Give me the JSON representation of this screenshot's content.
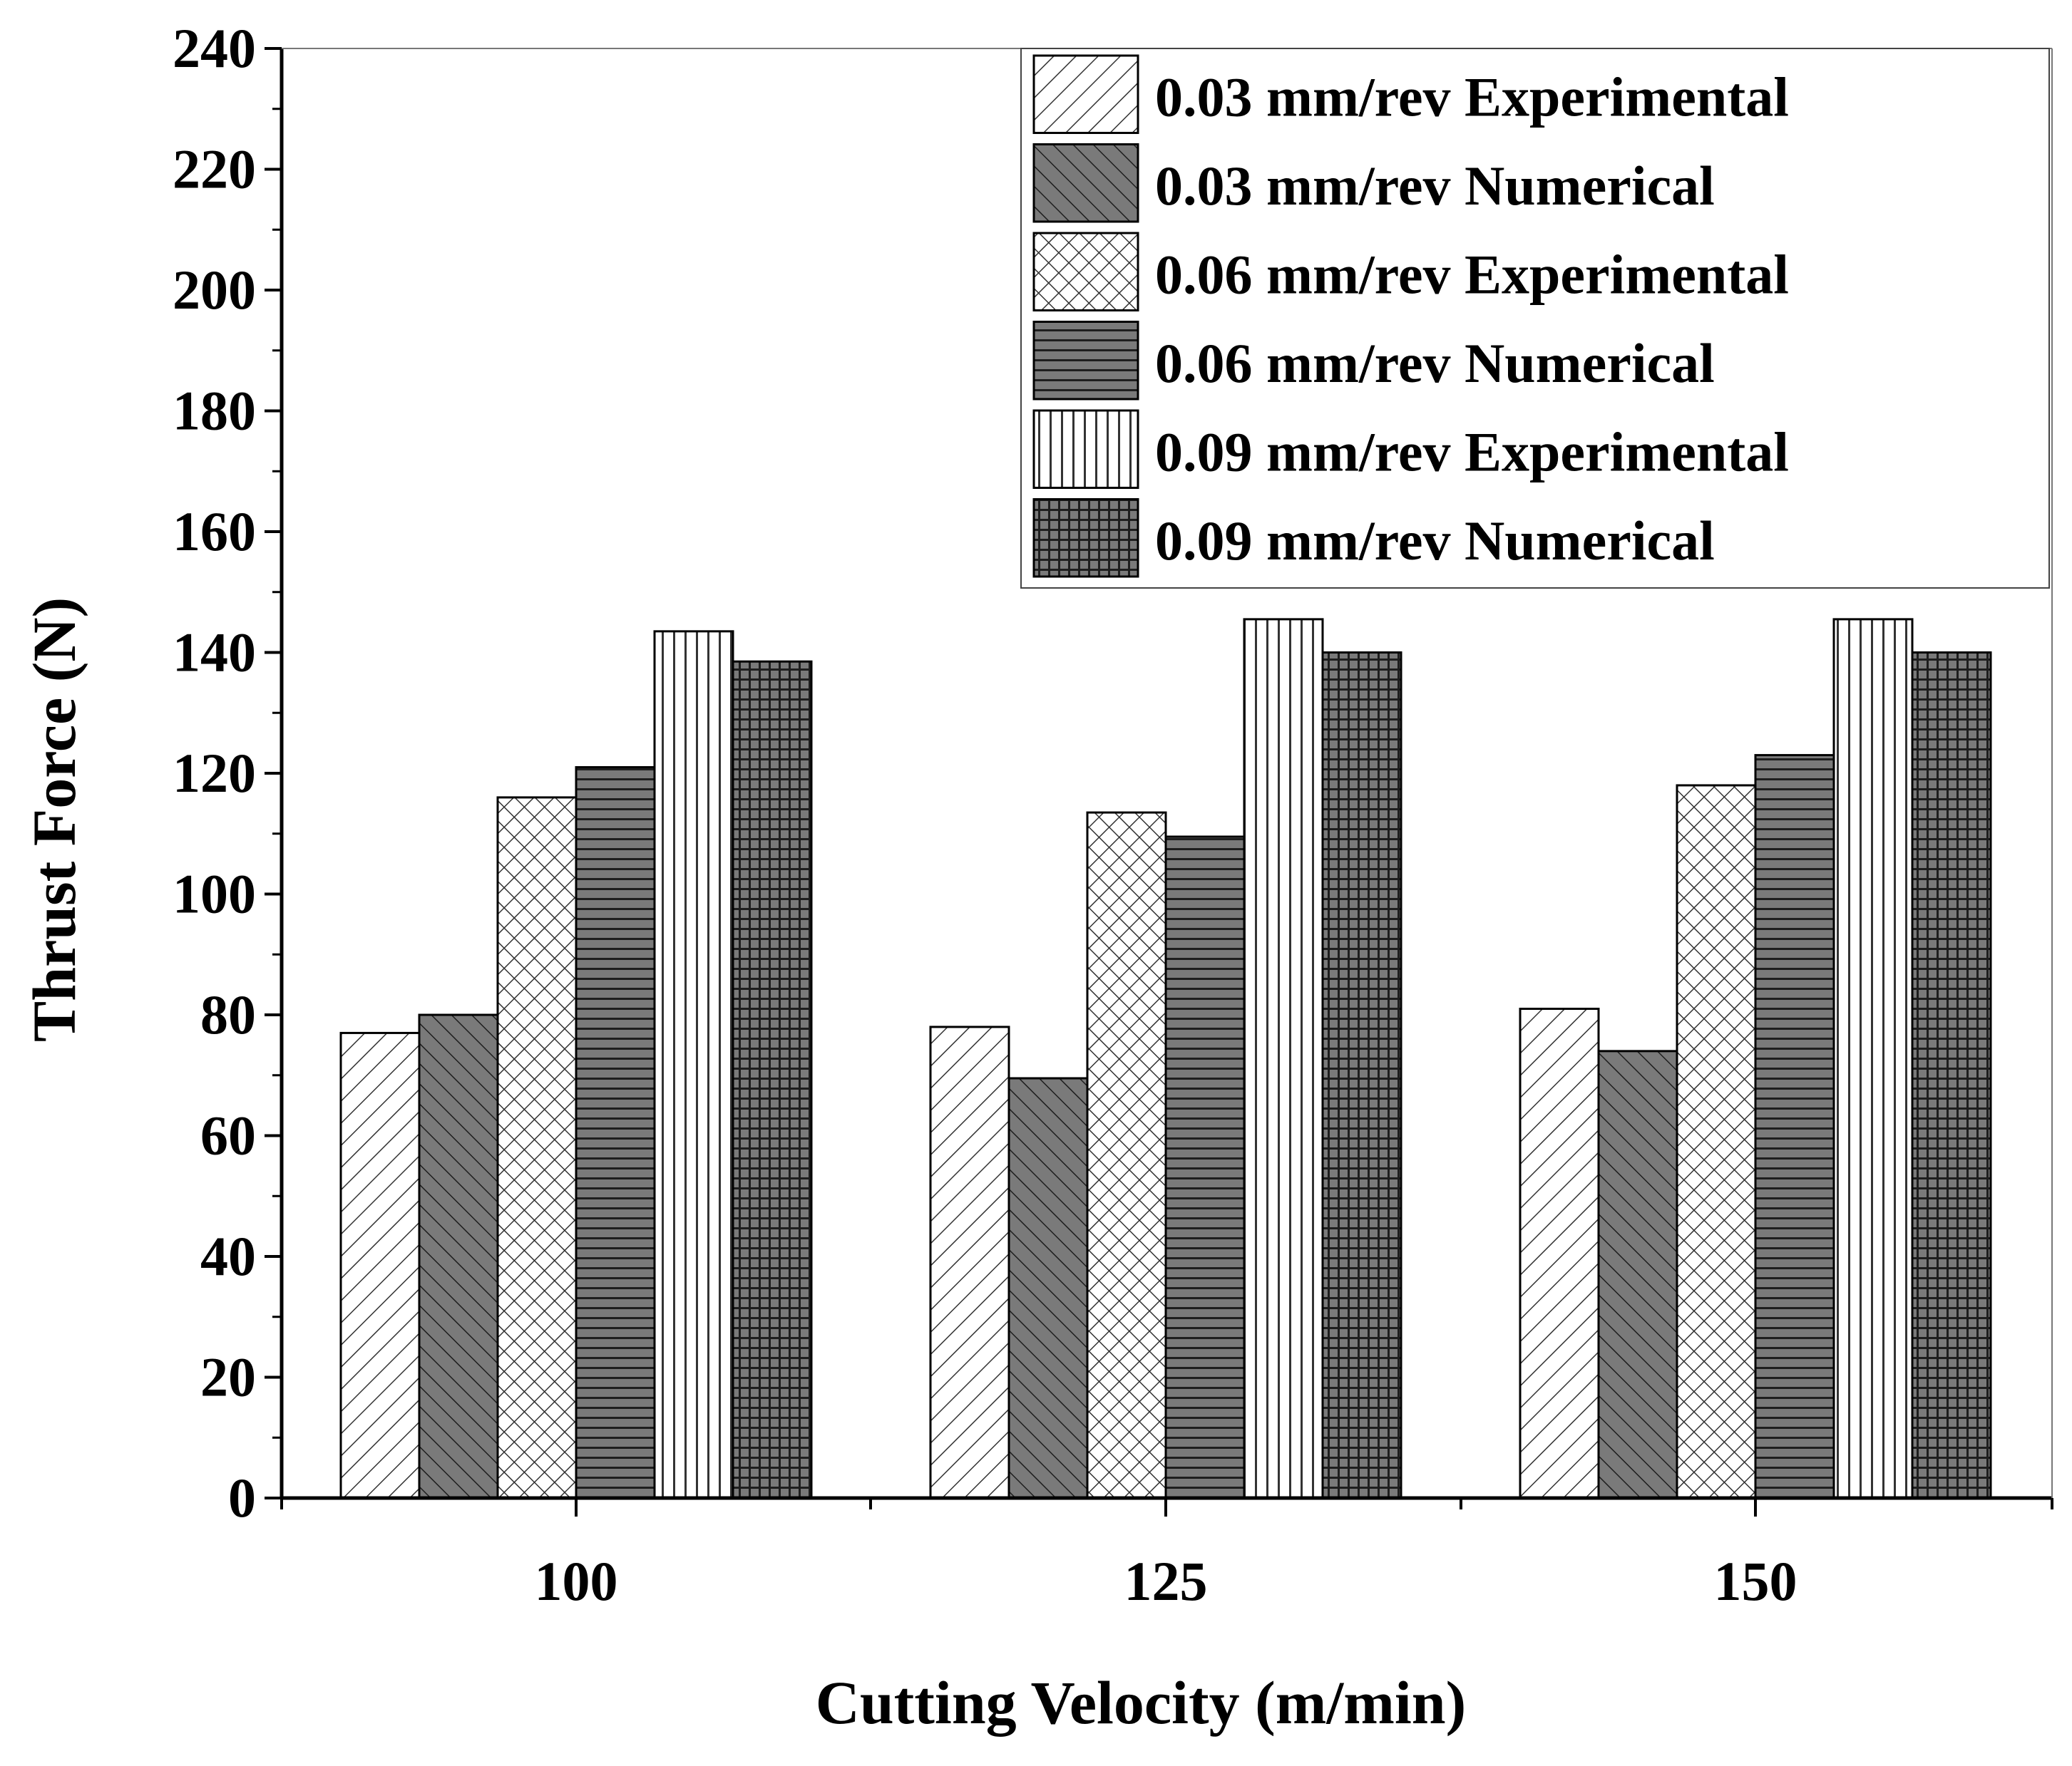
{
  "chart_data": {
    "type": "bar",
    "title": "",
    "xlabel": "Cutting Velocity (m/min)",
    "ylabel": "Thrust Force (N)",
    "categories": [
      "100",
      "125",
      "150"
    ],
    "ylim": [
      0,
      240
    ],
    "yticks": [
      "0",
      "20",
      "40",
      "60",
      "80",
      "100",
      "120",
      "140",
      "160",
      "180",
      "200",
      "220",
      "240"
    ],
    "grid": false,
    "legend_position": "top-right",
    "series": [
      {
        "name": "0.03 mm/rev Experimental",
        "values": [
          77,
          78,
          81
        ],
        "pattern": "diag-right",
        "fill": "#ffffff"
      },
      {
        "name": "0.03 mm/rev Numerical",
        "values": [
          80,
          69.5,
          74
        ],
        "pattern": "diag-left",
        "fill": "#7a7a7a"
      },
      {
        "name": "0.06 mm/rev Experimental",
        "values": [
          116,
          113.5,
          118
        ],
        "pattern": "crosshatch",
        "fill": "#ffffff"
      },
      {
        "name": "0.06 mm/rev Numerical",
        "values": [
          121,
          109.5,
          123
        ],
        "pattern": "horizontal",
        "fill": "#7a7a7a"
      },
      {
        "name": "0.09 mm/rev Experimental",
        "values": [
          143.5,
          145.5,
          145.5
        ],
        "pattern": "vertical",
        "fill": "#ffffff"
      },
      {
        "name": "0.09 mm/rev Numerical",
        "values": [
          138.5,
          140,
          140
        ],
        "pattern": "grid",
        "fill": "#7a7a7a"
      }
    ]
  }
}
